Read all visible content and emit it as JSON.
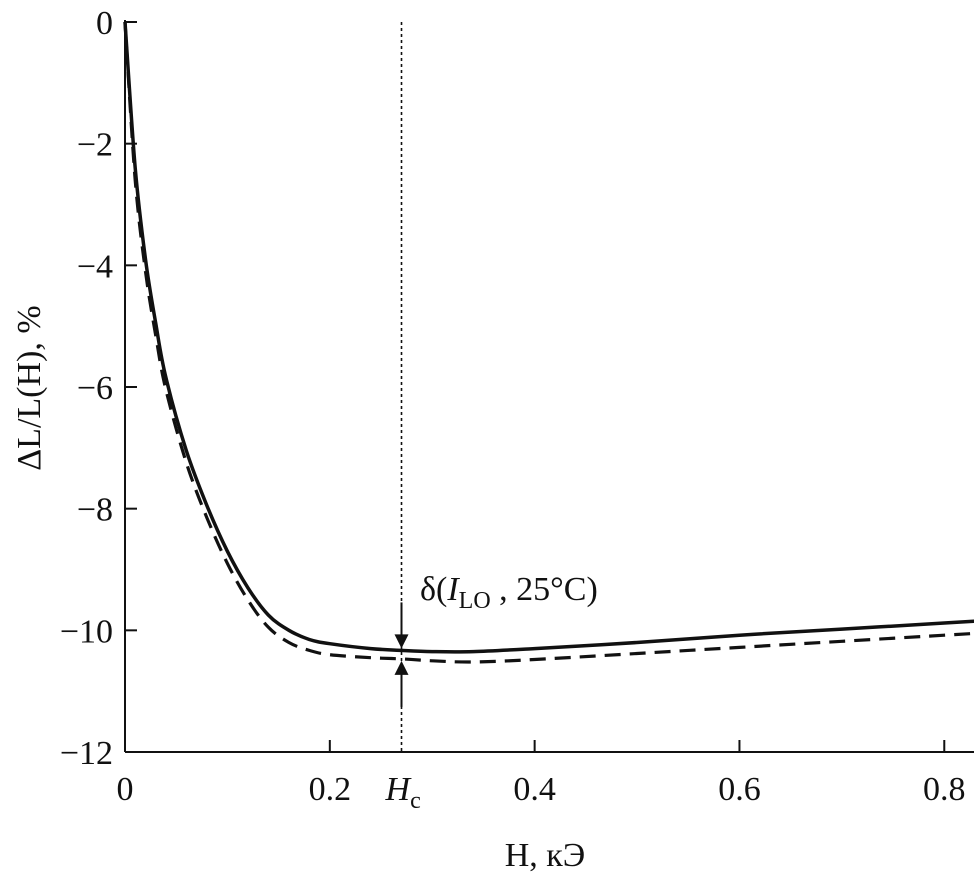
{
  "chart_data": {
    "type": "line",
    "title": "",
    "xlabel": "H, кЭ",
    "ylabel": "ΔL/L(H), %",
    "xlim": [
      0,
      0.83
    ],
    "ylim": [
      -12,
      0
    ],
    "x_ticks": [
      {
        "value": 0,
        "label": "0"
      },
      {
        "value": 0.2,
        "label": "0.2"
      },
      {
        "value": 0.4,
        "label": "0.4"
      },
      {
        "value": 0.6,
        "label": "0.6"
      },
      {
        "value": 0.8,
        "label": "0.8"
      }
    ],
    "y_ticks": [
      {
        "value": 0,
        "label": "0"
      },
      {
        "value": -2,
        "label": "−2"
      },
      {
        "value": -4,
        "label": "−4"
      },
      {
        "value": -6,
        "label": "−6"
      },
      {
        "value": -8,
        "label": "−8"
      },
      {
        "value": -10,
        "label": "−10"
      },
      {
        "value": -12,
        "label": "−12"
      }
    ],
    "grid": false,
    "legend": "none",
    "series": [
      {
        "style": "solid",
        "color": "#111111",
        "x": [
          0,
          0.01,
          0.02,
          0.03,
          0.04,
          0.06,
          0.08,
          0.1,
          0.12,
          0.14,
          0.16,
          0.18,
          0.2,
          0.24,
          0.27,
          0.3,
          0.34,
          0.4,
          0.5,
          0.6,
          0.7,
          0.8,
          0.83
        ],
        "y": [
          0,
          -2.4,
          -3.9,
          -4.95,
          -5.85,
          -7.05,
          -7.95,
          -8.7,
          -9.3,
          -9.75,
          -10.0,
          -10.15,
          -10.22,
          -10.3,
          -10.33,
          -10.35,
          -10.35,
          -10.3,
          -10.2,
          -10.08,
          -9.98,
          -9.88,
          -9.85
        ]
      },
      {
        "style": "dashed",
        "color": "#111111",
        "x": [
          0,
          0.01,
          0.02,
          0.03,
          0.04,
          0.06,
          0.08,
          0.1,
          0.12,
          0.14,
          0.16,
          0.18,
          0.2,
          0.24,
          0.27,
          0.3,
          0.34,
          0.4,
          0.5,
          0.6,
          0.7,
          0.8,
          0.83
        ],
        "y": [
          0,
          -2.6,
          -4.1,
          -5.15,
          -6.05,
          -7.25,
          -8.15,
          -8.9,
          -9.5,
          -9.95,
          -10.2,
          -10.33,
          -10.4,
          -10.45,
          -10.47,
          -10.5,
          -10.52,
          -10.48,
          -10.38,
          -10.28,
          -10.18,
          -10.08,
          -10.05
        ]
      }
    ],
    "annotations": {
      "hc_x": 0.27,
      "hc_label": "H",
      "hc_sub": "c",
      "delta_text_prefix": "δ(",
      "delta_italic": "I",
      "delta_sub": "LO",
      "delta_text_suffix": " , 25°C)",
      "arrow_top_y": -10.33,
      "arrow_bottom_y": -10.47
    }
  }
}
